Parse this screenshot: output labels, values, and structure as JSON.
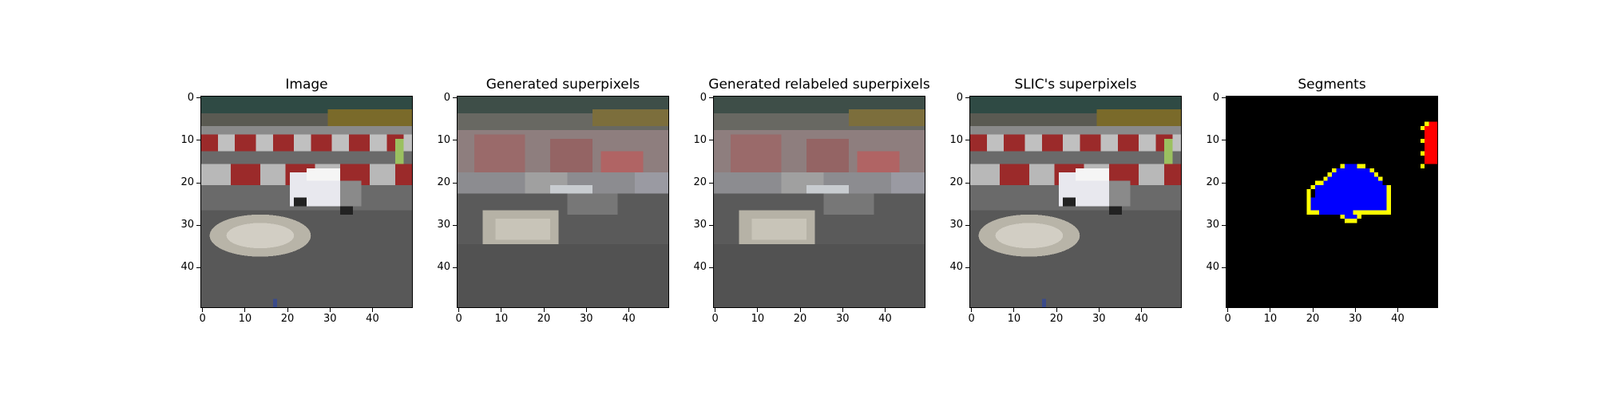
{
  "figure": {
    "panels": [
      {
        "id": "image",
        "title": "Image"
      },
      {
        "id": "generated",
        "title": "Generated superpixels"
      },
      {
        "id": "relabeled",
        "title": "Generated relabeled superpixels"
      },
      {
        "id": "slic",
        "title": "SLIC's superpixels"
      },
      {
        "id": "segments",
        "title": "Segments"
      }
    ],
    "x_ticks": [
      "0",
      "10",
      "20",
      "30",
      "40"
    ],
    "y_ticks": [
      "0",
      "10",
      "20",
      "30",
      "40"
    ],
    "colors": {
      "background": "#000000",
      "segment_main": "#0000ff",
      "segment_side": "#ff0000",
      "segment_border": "#ffff00"
    }
  }
}
